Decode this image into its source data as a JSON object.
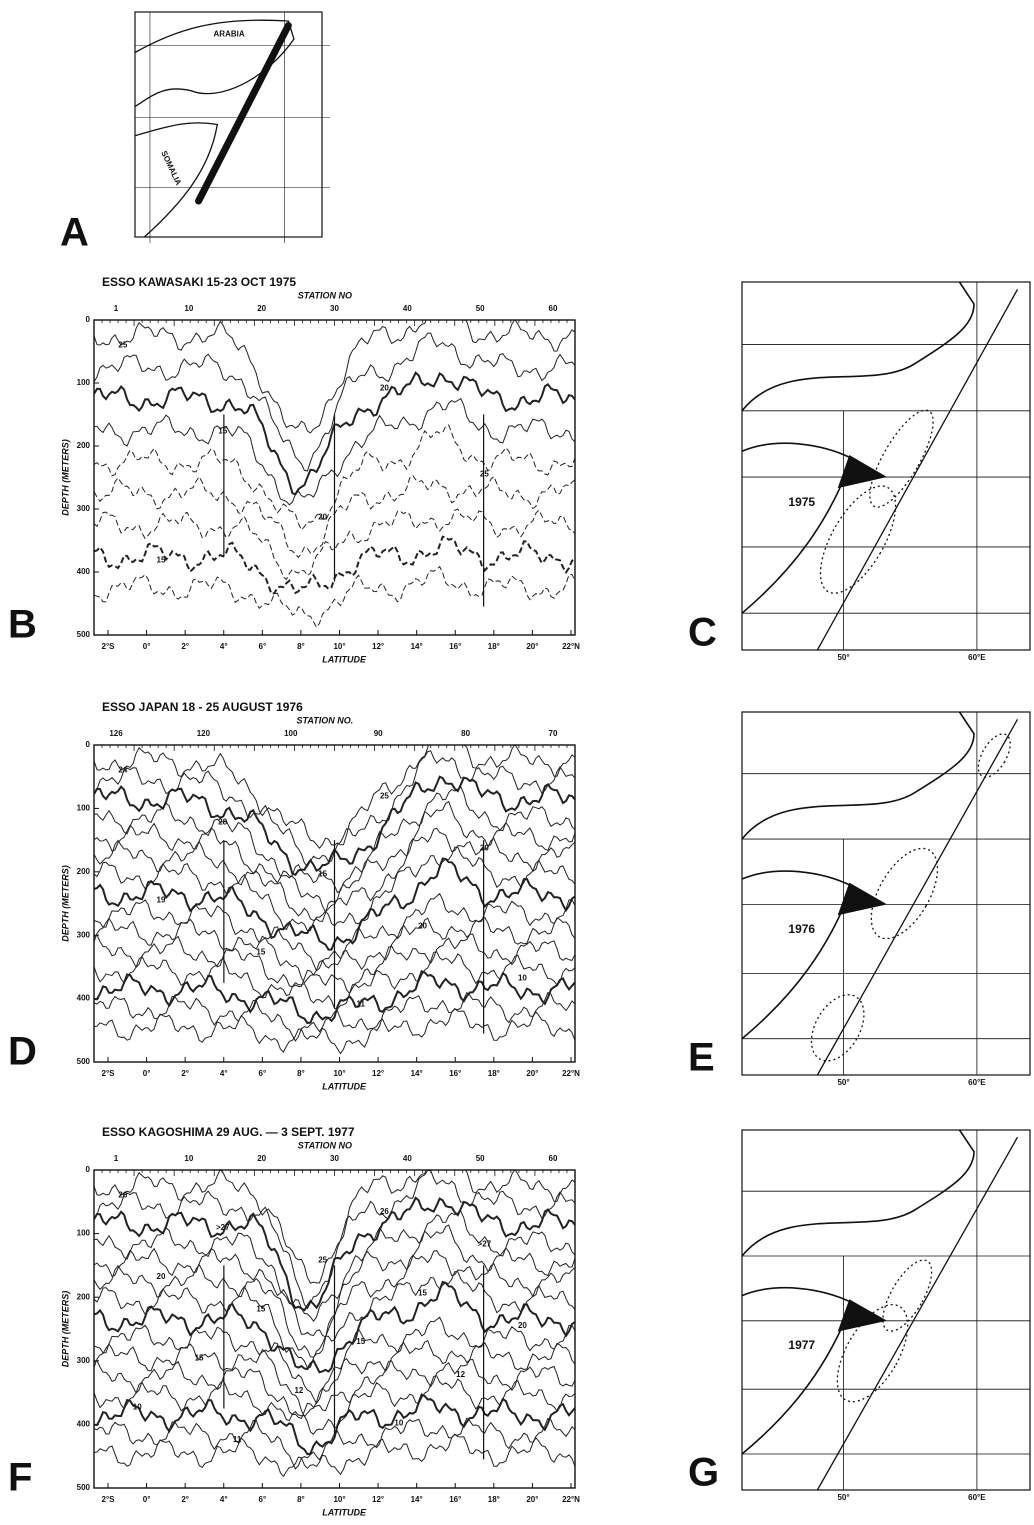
{
  "figure": {
    "map_a": {
      "letter": "A",
      "labels": [
        "ARABIA",
        "SOMALIA"
      ]
    },
    "sections": [
      {
        "letter": "B",
        "title": "ESSO KAWASAKI 15-23 OCT 1975",
        "station_label": "STATION NO",
        "station_ticks": [
          "1",
          "10",
          "20",
          "30",
          "40",
          "50",
          "60"
        ],
        "depth_label": "DEPTH (METERS)",
        "depth_ticks": [
          "0",
          "100",
          "200",
          "300",
          "400",
          "500"
        ],
        "latitude_label": "LATITUDE",
        "latitude_ticks": [
          "2°S",
          "0°",
          "2°",
          "4°",
          "6°",
          "8°",
          "10°",
          "12°",
          "14°",
          "16°",
          "18°",
          "20°",
          "22°N"
        ],
        "contour_labels": [
          "25",
          "20",
          "15",
          "25",
          "20",
          "15"
        ]
      },
      {
        "letter": "D",
        "title": "ESSO JAPAN  18 - 25 AUGUST 1976",
        "station_label": "STATION NO.",
        "station_ticks": [
          "126",
          "120",
          "100",
          "90",
          "80",
          "70"
        ],
        "depth_label": "DEPTH (METERS)",
        "depth_ticks": [
          "0",
          "100",
          "200",
          "300",
          "400",
          "500"
        ],
        "latitude_label": "LATITUDE",
        "latitude_ticks": [
          "2°S",
          "0°",
          "2°",
          "4°",
          "6°",
          "8°",
          "10°",
          "12°",
          "14°",
          "16°",
          "18°",
          "20°",
          "22°N"
        ],
        "contour_labels": [
          "24",
          "25",
          "28",
          "20",
          "15",
          "19",
          "20",
          "15",
          "10",
          "11"
        ]
      },
      {
        "letter": "F",
        "title": "ESSO KAGOSHIMA   29 AUG. — 3 SEPT.  1977",
        "station_label": "STATION NO",
        "station_ticks": [
          "1",
          "10",
          "20",
          "30",
          "40",
          "50",
          "60"
        ],
        "depth_label": "DEPTH (METERS)",
        "depth_ticks": [
          "0",
          "100",
          "200",
          "300",
          "400",
          "500"
        ],
        "latitude_label": "LATITUDE",
        "latitude_ticks": [
          "2°S",
          "0°",
          "2°",
          "4°",
          "6°",
          "8°",
          "10°",
          "12°",
          "14°",
          "16°",
          "18°",
          "20°",
          "22°N"
        ],
        "contour_labels": [
          "26",
          "26",
          ">27",
          ">27",
          "25",
          "20",
          "15",
          "15",
          "20",
          "15",
          "15",
          "12",
          "12",
          "10",
          "10",
          "11"
        ]
      }
    ],
    "maps": [
      {
        "letter": "C",
        "year": "1975",
        "lon_labels": [
          "50°",
          "60°E"
        ]
      },
      {
        "letter": "E",
        "year": "1976",
        "lon_labels": [
          "50°",
          "60°E"
        ]
      },
      {
        "letter": "G",
        "year": "1977",
        "lon_labels": [
          "50°",
          "60°E"
        ]
      }
    ]
  }
}
